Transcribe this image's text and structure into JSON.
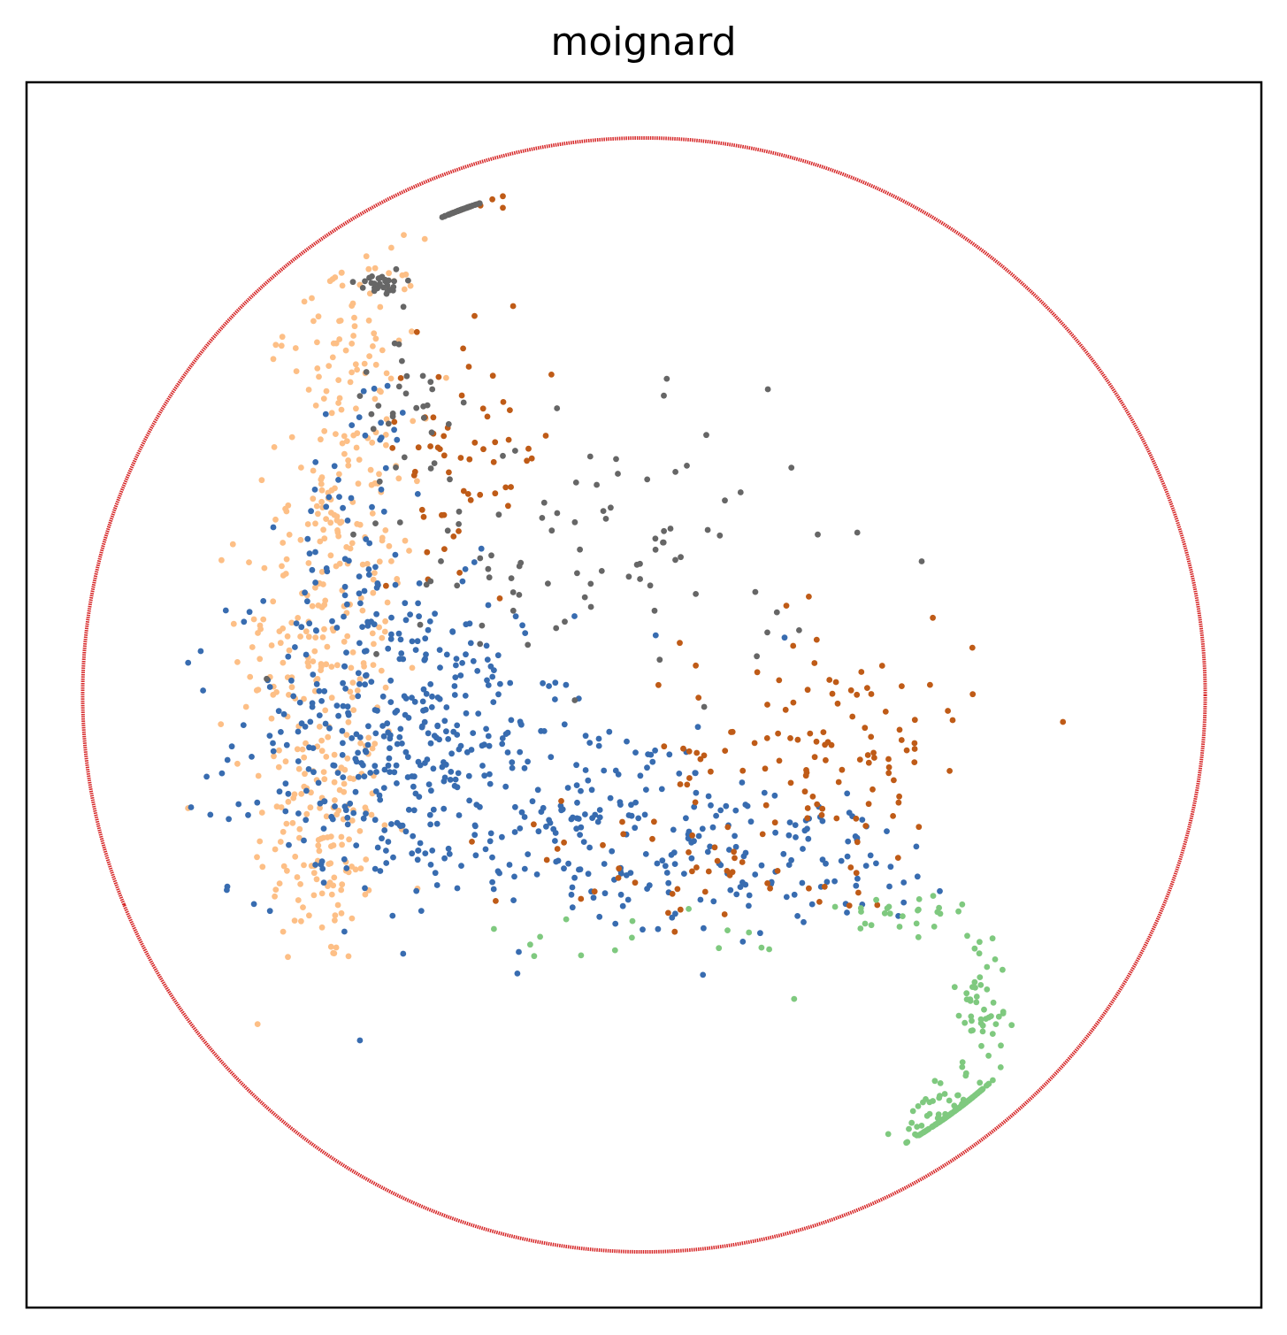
{
  "chart_data": {
    "type": "scatter",
    "title": "moignard",
    "xlabel": "",
    "ylabel": "",
    "xlim": [
      -1.1,
      1.1
    ],
    "ylim": [
      -1.1,
      1.1
    ],
    "grid": false,
    "legend": "none",
    "ticks": "none",
    "boundary_circle": {
      "center": [
        0,
        0
      ],
      "radius": 1.0,
      "color": "#d62728"
    },
    "series": [
      {
        "color": "#fdbf86",
        "clusters": [
          {
            "center": [
              -0.57,
              -0.26
            ],
            "spread": [
              0.06,
              0.12
            ],
            "count": 130
          },
          {
            "center": [
              -0.58,
              0.08
            ],
            "spread": [
              0.07,
              0.16
            ],
            "count": 150
          },
          {
            "center": [
              -0.53,
              0.38
            ],
            "spread": [
              0.06,
              0.14
            ],
            "count": 110
          },
          {
            "center": [
              -0.52,
              0.66
            ],
            "spread": [
              0.06,
              0.08
            ],
            "count": 60
          }
        ]
      },
      {
        "color": "#386cb0",
        "clusters": [
          {
            "center": [
              -0.43,
              -0.08
            ],
            "spread": [
              0.15,
              0.14
            ],
            "count": 380
          },
          {
            "center": [
              -0.08,
              -0.24
            ],
            "spread": [
              0.2,
              0.1
            ],
            "count": 200
          },
          {
            "center": [
              0.3,
              -0.3
            ],
            "spread": [
              0.14,
              0.06
            ],
            "count": 70
          },
          {
            "center": [
              -0.5,
              0.32
            ],
            "spread": [
              0.06,
              0.14
            ],
            "count": 60
          }
        ]
      },
      {
        "color": "#bf5b17",
        "clusters": [
          {
            "center": [
              0.33,
              -0.1
            ],
            "spread": [
              0.13,
              0.12
            ],
            "count": 120
          },
          {
            "center": [
              -0.32,
              0.44
            ],
            "spread": [
              0.08,
              0.1
            ],
            "count": 60
          },
          {
            "center": [
              -0.32,
              0.9
            ],
            "spread": [
              0.03,
              0.02
            ],
            "count": 14
          },
          {
            "center": [
              0.05,
              -0.3
            ],
            "spread": [
              0.16,
              0.06
            ],
            "count": 40
          }
        ]
      },
      {
        "color": "#666666",
        "clusters": [
          {
            "center": [
              -0.34,
              0.91
            ],
            "spread": [
              0.02,
              0.012
            ],
            "count": 60
          },
          {
            "center": [
              -0.47,
              0.74
            ],
            "spread": [
              0.02,
              0.015
            ],
            "count": 30
          },
          {
            "center": [
              -0.08,
              0.25
            ],
            "spread": [
              0.2,
              0.12
            ],
            "count": 90
          },
          {
            "center": [
              -0.42,
              0.52
            ],
            "spread": [
              0.05,
              0.08
            ],
            "count": 30
          }
        ]
      },
      {
        "color": "#7fc97f",
        "clusters": [
          {
            "center": [
              0.57,
              -0.78
            ],
            "spread": [
              0.045,
              0.035
            ],
            "count": 190
          },
          {
            "center": [
              0.6,
              -0.55
            ],
            "spread": [
              0.025,
              0.07
            ],
            "count": 50
          },
          {
            "center": [
              0.46,
              -0.4
            ],
            "spread": [
              0.06,
              0.03
            ],
            "count": 25
          },
          {
            "center": [
              0.06,
              -0.44
            ],
            "spread": [
              0.16,
              0.04
            ],
            "count": 16
          }
        ]
      }
    ]
  }
}
